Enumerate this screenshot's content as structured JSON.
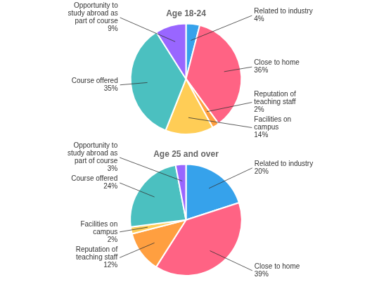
{
  "chart_data": [
    {
      "type": "pie",
      "title": "Age 18-24",
      "categories": [
        "Related to industry\n4%",
        "Close to home\n36%",
        "Reputation of\nteaching staff\n2%",
        "Facilities on\ncampus\n14%",
        "Course offered\n35%",
        "Opportunity to\nstudy abroad as\npart of course\n9%"
      ],
      "values": [
        4,
        36,
        2,
        14,
        35,
        9
      ]
    },
    {
      "type": "pie",
      "title": "Age 25 and over",
      "categories": [
        "Related to industry\n20%",
        "Close to home\n39%",
        "Reputation of\nteaching staff\n12%",
        "Facilities on\ncampus\n2%",
        "Course offered\n24%",
        "Opportunity to\nstudy abroad as\npart of course\n3%"
      ],
      "values": [
        20,
        39,
        12,
        2,
        24,
        3
      ]
    }
  ]
}
